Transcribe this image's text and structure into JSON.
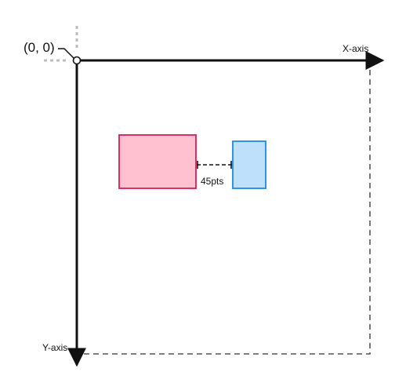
{
  "diagram": {
    "origin_label": "(0, 0)",
    "x_axis_label": "X-axis",
    "y_axis_label": "Y-axis",
    "gap_label": "45pts"
  },
  "colors": {
    "axis": "#111111",
    "bounds_dash": "#555555",
    "origin_guide": "#bdbdbd",
    "pink_fill": "#ffc0cf",
    "pink_stroke": "#d81b5a",
    "blue_fill": "#bfe0fb",
    "blue_stroke": "#1e88e5",
    "gap_line": "#111111"
  }
}
